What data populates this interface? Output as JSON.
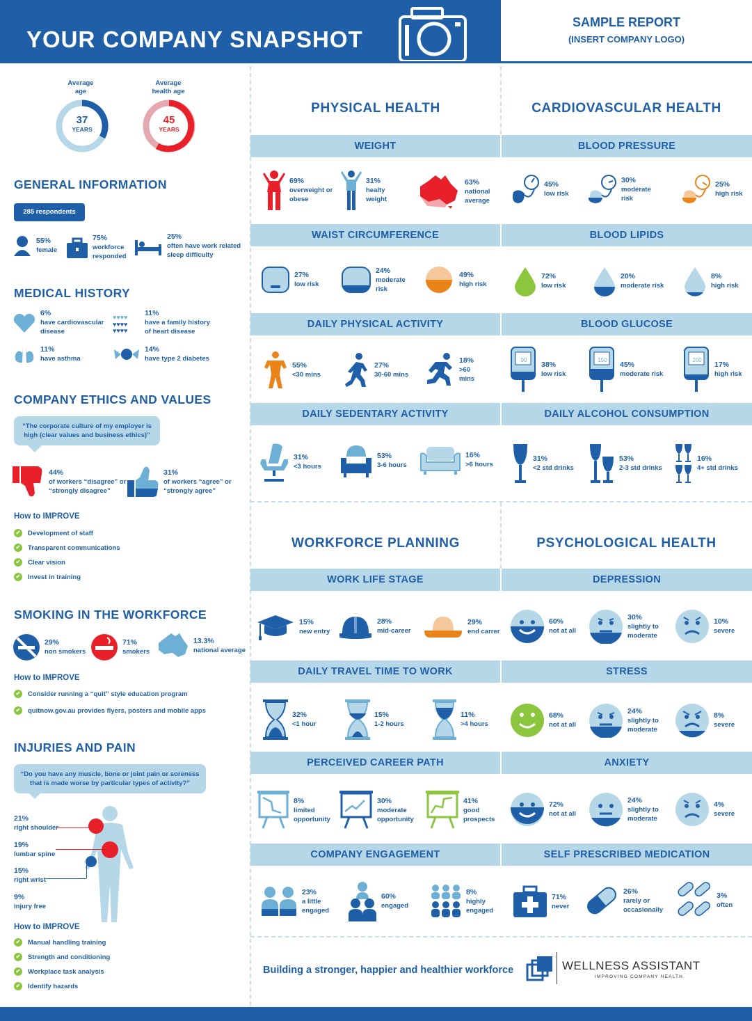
{
  "header": {
    "title": "YOUR COMPANY SNAPSHOT",
    "sample": "SAMPLE REPORT",
    "logo": "(INSERT COMPANY LOGO)"
  },
  "ages": {
    "avg_label1": "Average",
    "avg_label2": "age",
    "avg_value": "37",
    "avg_unit": "YEARS",
    "health_label1": "Average",
    "health_label2": "health age",
    "health_value": "45",
    "health_unit": "YEARS"
  },
  "general": {
    "heading": "GENERAL INFORMATION",
    "respondents": "285 respondents",
    "items": [
      {
        "pct": "55%",
        "label": "female"
      },
      {
        "pct": "75%",
        "label": "workforce responded"
      },
      {
        "pct": "25%",
        "label": "often have work related sleep difficulty"
      }
    ]
  },
  "medical": {
    "heading": "MEDICAL HISTORY",
    "items": [
      {
        "pct": "6%",
        "label": "have cardiovascular disease"
      },
      {
        "pct": "11%",
        "label": "have a family history of heart disease"
      },
      {
        "pct": "11%",
        "label": "have asthma"
      },
      {
        "pct": "14%",
        "label": "have type 2 diabetes"
      }
    ]
  },
  "ethics": {
    "heading": "COMPANY ETHICS AND VALUES",
    "quote": "“The corporate culture of my employer is high (clear values and business ethics)”",
    "disagree_pct": "44%",
    "disagree_label": "of workers “disagree” or “strongly disagree”",
    "agree_pct": "31%",
    "agree_label": "of workers “agree” or “strongly agree”",
    "how": "How to IMPROVE",
    "tips": [
      "Development of staff",
      "Transparent communications",
      "Clear vision",
      "Invest in training"
    ]
  },
  "smoking": {
    "heading": "SMOKING IN THE WORKFORCE",
    "items": [
      {
        "pct": "29%",
        "label": "non smokers"
      },
      {
        "pct": "71%",
        "label": "smokers"
      },
      {
        "pct": "13.3%",
        "label": "national average"
      }
    ],
    "how": "How to IMPROVE",
    "tips": [
      "Consider running a “quit” style education program",
      "quitnow.gov.au provides flyers, posters and mobile apps"
    ]
  },
  "injuries": {
    "heading": "INJURIES AND PAIN",
    "quote": "“Do you have any muscle, bone or joint pain or soreness that is made worse by particular types of activity?”",
    "items": [
      {
        "pct": "21%",
        "label": "right shoulder"
      },
      {
        "pct": "19%",
        "label": "lumbar spine"
      },
      {
        "pct": "15%",
        "label": "right wrist"
      },
      {
        "pct": "9%",
        "label": "injury free"
      }
    ],
    "how": "How to IMPROVE",
    "tips": [
      "Manual handling training",
      "Strength and conditioning",
      "Workplace task analysis",
      "Identify hazards"
    ]
  },
  "physical": {
    "heading": "PHYSICAL HEALTH",
    "weight": {
      "title": "WEIGHT",
      "items": [
        {
          "pct": "69%",
          "label": "overweight or obese"
        },
        {
          "pct": "31%",
          "label": "healty weight"
        },
        {
          "pct": "63%",
          "label": "national average"
        }
      ]
    },
    "waist": {
      "title": "WAIST CIRCUMFERENCE",
      "items": [
        {
          "pct": "27%",
          "label": "low risk"
        },
        {
          "pct": "24%",
          "label": "moderate risk"
        },
        {
          "pct": "49%",
          "label": "high risk"
        }
      ]
    },
    "activity": {
      "title": "DAILY PHYSICAL ACTIVITY",
      "items": [
        {
          "pct": "55%",
          "label": "<30 mins"
        },
        {
          "pct": "27%",
          "label": "30-60 mins"
        },
        {
          "pct": "18%",
          "label": ">60 mins"
        }
      ]
    },
    "sedentary": {
      "title": "DAILY SEDENTARY ACTIVITY",
      "items": [
        {
          "pct": "31%",
          "label": "<3 hours"
        },
        {
          "pct": "53%",
          "label": "3-6 hours"
        },
        {
          "pct": "16%",
          "label": ">6 hours"
        }
      ]
    }
  },
  "cardio": {
    "heading": "CARDIOVASCULAR HEALTH",
    "bp": {
      "title": "BLOOD PRESSURE",
      "items": [
        {
          "pct": "45%",
          "label": "low risk"
        },
        {
          "pct": "30%",
          "label": "moderate risk"
        },
        {
          "pct": "25%",
          "label": "high risk"
        }
      ]
    },
    "lipids": {
      "title": "BLOOD LIPIDS",
      "items": [
        {
          "pct": "72%",
          "label": "low risk"
        },
        {
          "pct": "20%",
          "label": "moderate risk"
        },
        {
          "pct": "8%",
          "label": "high risk"
        }
      ]
    },
    "glucose": {
      "title": "BLOOD GLUCOSE",
      "items": [
        {
          "pct": "38%",
          "label": "low risk",
          "reading": "90"
        },
        {
          "pct": "45%",
          "label": "moderate risk",
          "reading": "150"
        },
        {
          "pct": "17%",
          "label": "high risk",
          "reading": "200"
        }
      ]
    },
    "alcohol": {
      "title": "DAILY ALCOHOL CONSUMPTION",
      "items": [
        {
          "pct": "31%",
          "label": "<2 std drinks"
        },
        {
          "pct": "53%",
          "label": "2-3 std drinks"
        },
        {
          "pct": "16%",
          "label": "4+ std drinks"
        }
      ]
    }
  },
  "workforce": {
    "heading": "WORKFORCE PLANNING",
    "stage": {
      "title": "WORK LIFE STAGE",
      "items": [
        {
          "pct": "15%",
          "label": "new entry"
        },
        {
          "pct": "28%",
          "label": "mid-career"
        },
        {
          "pct": "29%",
          "label": "end carrer"
        }
      ]
    },
    "travel": {
      "title": "DAILY TRAVEL TIME TO WORK",
      "items": [
        {
          "pct": "32%",
          "label": "<1 hour"
        },
        {
          "pct": "15%",
          "label": "1-2 hours"
        },
        {
          "pct": "11%",
          "label": ">4 hours"
        }
      ]
    },
    "career": {
      "title": "PERCEIVED CAREER PATH",
      "items": [
        {
          "pct": "8%",
          "label": "limited opportunity"
        },
        {
          "pct": "30%",
          "label": "moderate opportunity"
        },
        {
          "pct": "41%",
          "label": "good prospects"
        }
      ]
    },
    "engagement": {
      "title": "COMPANY ENGAGEMENT",
      "items": [
        {
          "pct": "23%",
          "label": "a little engaged"
        },
        {
          "pct": "60%",
          "label": "engaged"
        },
        {
          "pct": "8%",
          "label": "highly engaged"
        }
      ]
    }
  },
  "psych": {
    "heading": "PSYCHOLOGICAL HEALTH",
    "depression": {
      "title": "DEPRESSION",
      "items": [
        {
          "pct": "60%",
          "label": "not at all"
        },
        {
          "pct": "30%",
          "label": "slightly to moderate"
        },
        {
          "pct": "10%",
          "label": "severe"
        }
      ]
    },
    "stress": {
      "title": "STRESS",
      "items": [
        {
          "pct": "68%",
          "label": "not at all"
        },
        {
          "pct": "24%",
          "label": "slightly to moderate"
        },
        {
          "pct": "8%",
          "label": "severe"
        }
      ]
    },
    "anxiety": {
      "title": "ANXIETY",
      "items": [
        {
          "pct": "72%",
          "label": "not at all"
        },
        {
          "pct": "24%",
          "label": "slightly to moderate"
        },
        {
          "pct": "4%",
          "label": "severe"
        }
      ]
    },
    "medication": {
      "title": "SELF PRESCRIBED MEDICATION",
      "items": [
        {
          "pct": "71%",
          "label": "never"
        },
        {
          "pct": "26%",
          "label": "rarely or occasionally"
        },
        {
          "pct": "3%",
          "label": "often"
        }
      ]
    }
  },
  "footer": {
    "tagline": "Building a stronger, happier and healthier workforce",
    "brand": "WELLNESS ASSISTANT",
    "brand_sub": "IMPROVING COMPANY HEALTH"
  },
  "colors": {
    "blue": "#1f5fa8",
    "light": "#b6d7e8",
    "red": "#e8202a",
    "green": "#8cc63f",
    "orange": "#e8841a"
  }
}
